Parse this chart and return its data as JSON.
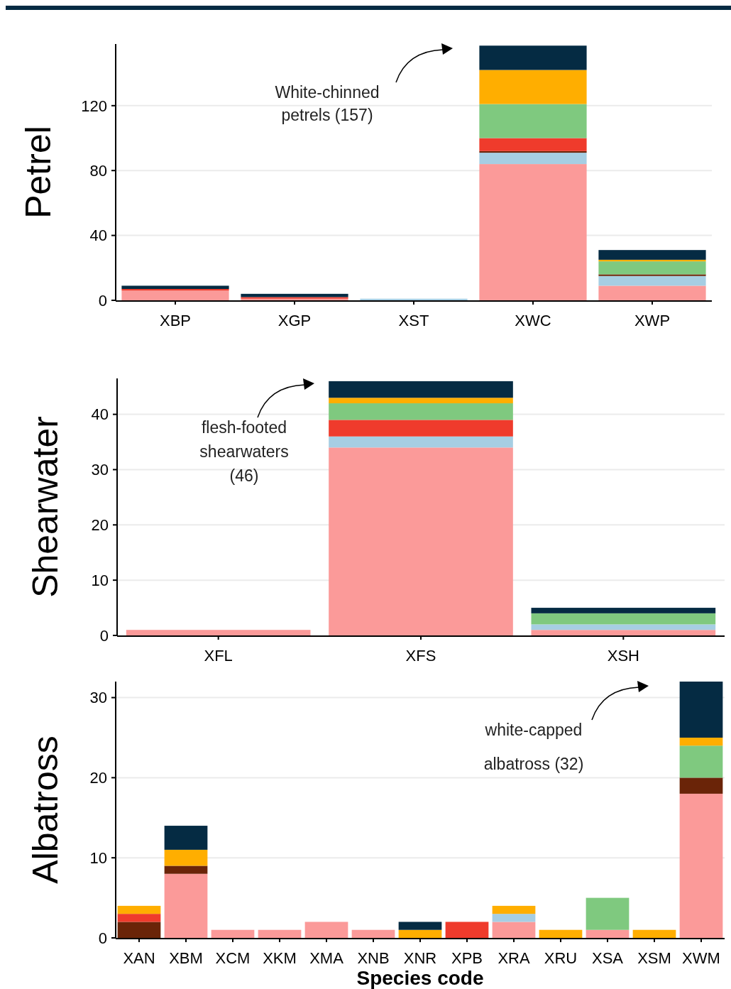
{
  "chart_data": [
    {
      "type": "bar",
      "stacked": true,
      "ylabel": "Petrel",
      "categories": [
        "XBP",
        "XGP",
        "XST",
        "XWC",
        "XWP"
      ],
      "ylim": [
        0,
        158
      ],
      "yticks": [
        0,
        40,
        80,
        120
      ],
      "grid": "y",
      "series": [
        {
          "color": "#fb9a99",
          "values": [
            6,
            1,
            0,
            84,
            9
          ]
        },
        {
          "color": "#a6cee3",
          "values": [
            0,
            0,
            1,
            7,
            6
          ]
        },
        {
          "color": "#6a2408",
          "values": [
            0,
            0,
            0,
            1,
            1
          ]
        },
        {
          "color": "#ef3b2c",
          "values": [
            1,
            1,
            0,
            8,
            0
          ]
        },
        {
          "color": "#7fc97f",
          "values": [
            0,
            0,
            0,
            21,
            8
          ]
        },
        {
          "color": "#ffae00",
          "values": [
            0,
            0,
            0,
            21,
            1
          ]
        },
        {
          "color": "#052b43",
          "values": [
            2,
            2,
            0,
            15,
            6
          ]
        }
      ],
      "annotations": [
        "White-chinned\npetrels (157)"
      ]
    },
    {
      "type": "bar",
      "stacked": true,
      "ylabel": "Shearwater",
      "categories": [
        "XFL",
        "XFS",
        "XSH"
      ],
      "ylim": [
        0,
        46.5
      ],
      "yticks": [
        0,
        10,
        20,
        30,
        40
      ],
      "grid": "y",
      "series": [
        {
          "color": "#fb9a99",
          "values": [
            1,
            34,
            1
          ]
        },
        {
          "color": "#a6cee3",
          "values": [
            0,
            2,
            1
          ]
        },
        {
          "color": "#ef3b2c",
          "values": [
            0,
            3,
            0
          ]
        },
        {
          "color": "#7fc97f",
          "values": [
            0,
            3,
            2
          ]
        },
        {
          "color": "#ffae00",
          "values": [
            0,
            1,
            0
          ]
        },
        {
          "color": "#052b43",
          "values": [
            0,
            3,
            1
          ]
        }
      ],
      "annotations": [
        "flesh-footed\nshearwaters\n(46)"
      ]
    },
    {
      "type": "bar",
      "stacked": true,
      "ylabel": "Albatross",
      "xlabel": "Species code",
      "categories": [
        "XAN",
        "XBM",
        "XCM",
        "XKM",
        "XMA",
        "XNB",
        "XNR",
        "XPB",
        "XRA",
        "XRU",
        "XSA",
        "XSM",
        "XWM"
      ],
      "ylim": [
        0,
        32
      ],
      "yticks": [
        0,
        10,
        20,
        30
      ],
      "grid": "y",
      "series": [
        {
          "color": "#fb9a99",
          "values": [
            0,
            8,
            1,
            1,
            2,
            1,
            0,
            0,
            2,
            0,
            1,
            0,
            18
          ]
        },
        {
          "color": "#a6cee3",
          "values": [
            0,
            0,
            0,
            0,
            0,
            0,
            0,
            0,
            1,
            0,
            0,
            0,
            0
          ]
        },
        {
          "color": "#6a2408",
          "values": [
            2,
            1,
            0,
            0,
            0,
            0,
            0,
            0,
            0,
            0,
            0,
            0,
            2
          ]
        },
        {
          "color": "#ef3b2c",
          "values": [
            1,
            0,
            0,
            0,
            0,
            0,
            0,
            2,
            0,
            0,
            0,
            0,
            0
          ]
        },
        {
          "color": "#7fc97f",
          "values": [
            0,
            0,
            0,
            0,
            0,
            0,
            0,
            0,
            0,
            0,
            4,
            0,
            4
          ]
        },
        {
          "color": "#ffae00",
          "values": [
            1,
            2,
            0,
            0,
            0,
            0,
            1,
            0,
            1,
            1,
            0,
            1,
            1
          ]
        },
        {
          "color": "#052b43",
          "values": [
            0,
            3,
            0,
            0,
            0,
            0,
            1,
            0,
            0,
            0,
            0,
            0,
            7
          ]
        }
      ],
      "annotations": [
        "white-capped\nalbatross (32)"
      ]
    }
  ]
}
